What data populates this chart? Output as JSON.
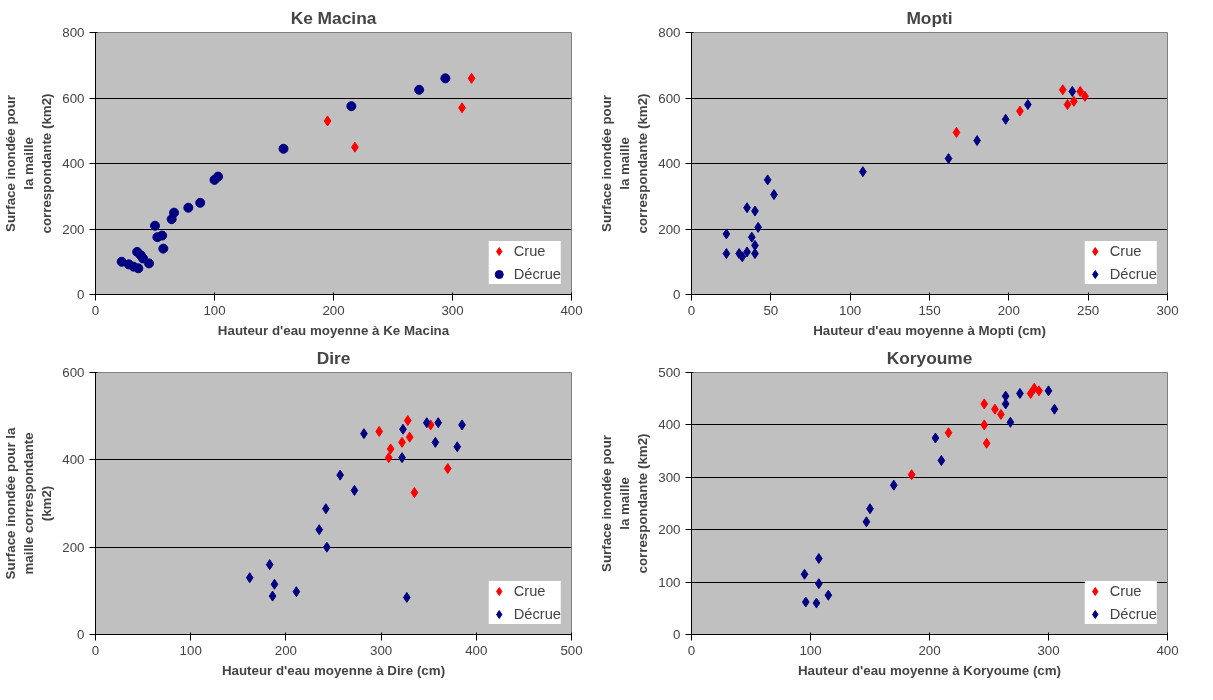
{
  "chart_data": [
    {
      "type": "scatter",
      "title": "Ke Macina",
      "xlabel": "Hauteur d'eau moyenne à Ke Macina",
      "ylabel": "Surface inondée pour\nla maille\ncorrespondante (km2)",
      "xlim": [
        0,
        400
      ],
      "ylim": [
        0,
        800
      ],
      "xticks": [
        0,
        100,
        200,
        300,
        400
      ],
      "yticks": [
        0,
        200,
        400,
        600,
        800
      ],
      "grid": "y",
      "legend": "bottom right",
      "series": [
        {
          "name": "Crue",
          "color": "#ff0000",
          "marker": "diamond",
          "x": [
            195,
            218,
            308,
            316
          ],
          "values": [
            530,
            450,
            570,
            660
          ]
        },
        {
          "name": "Décrue",
          "color": "#000080",
          "marker": "circle",
          "x": [
            22,
            28,
            32,
            35,
            36,
            38,
            40,
            42,
            45,
            50,
            52,
            56,
            57,
            64,
            66,
            78,
            88,
            100,
            103,
            158,
            215,
            272,
            294
          ],
          "values": [
            100,
            92,
            85,
            130,
            80,
            120,
            110,
            null,
            95,
            210,
            175,
            180,
            140,
            230,
            250,
            265,
            280,
            350,
            360,
            445,
            575,
            625,
            660
          ]
        }
      ]
    },
    {
      "type": "scatter",
      "title": "Mopti",
      "xlabel": "Hauteur d'eau moyenne à Mopti (cm)",
      "ylabel": "Surface inondée pour\nla maille\ncorrespondante (km2)",
      "xlim": [
        0,
        300
      ],
      "ylim": [
        0,
        800
      ],
      "xticks": [
        0,
        50,
        100,
        150,
        200,
        250,
        300
      ],
      "yticks": [
        0,
        200,
        400,
        600,
        800
      ],
      "grid": "y",
      "legend": "bottom right",
      "series": [
        {
          "name": "Crue",
          "color": "#ff0000",
          "marker": "diamond",
          "x": [
            167,
            207,
            234,
            237,
            241,
            245,
            248
          ],
          "values": [
            495,
            560,
            625,
            580,
            590,
            620,
            605
          ]
        },
        {
          "name": "Décrue",
          "color": "#000080",
          "marker": "diamond",
          "x": [
            22,
            22,
            30,
            32,
            35,
            35,
            38,
            40,
            40,
            42,
            40,
            48,
            52,
            108,
            162,
            180,
            198,
            212,
            240
          ],
          "values": [
            185,
            125,
            125,
            115,
            130,
            265,
            175,
            150,
            255,
            205,
            125,
            350,
            305,
            375,
            415,
            470,
            535,
            580,
            620
          ]
        }
      ]
    },
    {
      "type": "scatter",
      "title": "Dire",
      "xlabel": "Hauteur d'eau moyenne à Dire (cm)",
      "ylabel": "Surface inondée pour la\nmaille correspondante\n(km2)",
      "xlim": [
        0,
        500
      ],
      "ylim": [
        0,
        600
      ],
      "xticks": [
        0,
        100,
        200,
        300,
        400,
        500
      ],
      "yticks": [
        0,
        200,
        400,
        600
      ],
      "grid": "y",
      "legend": "bottom right",
      "series": [
        {
          "name": "Crue",
          "color": "#ff0000",
          "marker": "diamond",
          "x": [
            298,
            308,
            310,
            322,
            325,
            328,
            330,
            335,
            352,
            370
          ],
          "values": [
            465,
            405,
            425,
            440,
            null,
            490,
            452,
            325,
            480,
            380
          ]
        },
        {
          "name": "Décrue",
          "color": "#000080",
          "marker": "diamond",
          "x": [
            162,
            183,
            188,
            186,
            211,
            235,
            242,
            243,
            257,
            272,
            282,
            322,
            323,
            327,
            348,
            357,
            360,
            380,
            385
          ],
          "values": [
            130,
            160,
            115,
            88,
            98,
            240,
            288,
            200,
            365,
            330,
            460,
            405,
            470,
            85,
            485,
            440,
            485,
            430,
            480
          ]
        }
      ]
    },
    {
      "type": "scatter",
      "title": "Koryoume",
      "xlabel": "Hauteur d'eau moyenne à Koryoume (cm)",
      "ylabel": "Surface inondée pour\nla maille\ncorrespondante (km2)",
      "xlim": [
        0,
        400
      ],
      "ylim": [
        0,
        500
      ],
      "xticks": [
        0,
        100,
        200,
        300,
        400
      ],
      "yticks": [
        0,
        100,
        200,
        300,
        400,
        500
      ],
      "grid": "y",
      "legend": "bottom right",
      "series": [
        {
          "name": "Crue",
          "color": "#ff0000",
          "marker": "diamond",
          "x": [
            185,
            216,
            246,
            246,
            248,
            255,
            260,
            285,
            288,
            292
          ],
          "values": [
            305,
            385,
            440,
            400,
            365,
            430,
            420,
            460,
            470,
            465
          ]
        },
        {
          "name": "Décrue",
          "color": "#000080",
          "marker": "diamond",
          "x": [
            95,
            96,
            105,
            107,
            107,
            115,
            147,
            150,
            170,
            205,
            210,
            264,
            264,
            268,
            276,
            300,
            305
          ],
          "values": [
            115,
            62,
            60,
            145,
            97,
            75,
            215,
            240,
            285,
            375,
            332,
            440,
            455,
            405,
            460,
            465,
            430
          ]
        }
      ]
    }
  ]
}
